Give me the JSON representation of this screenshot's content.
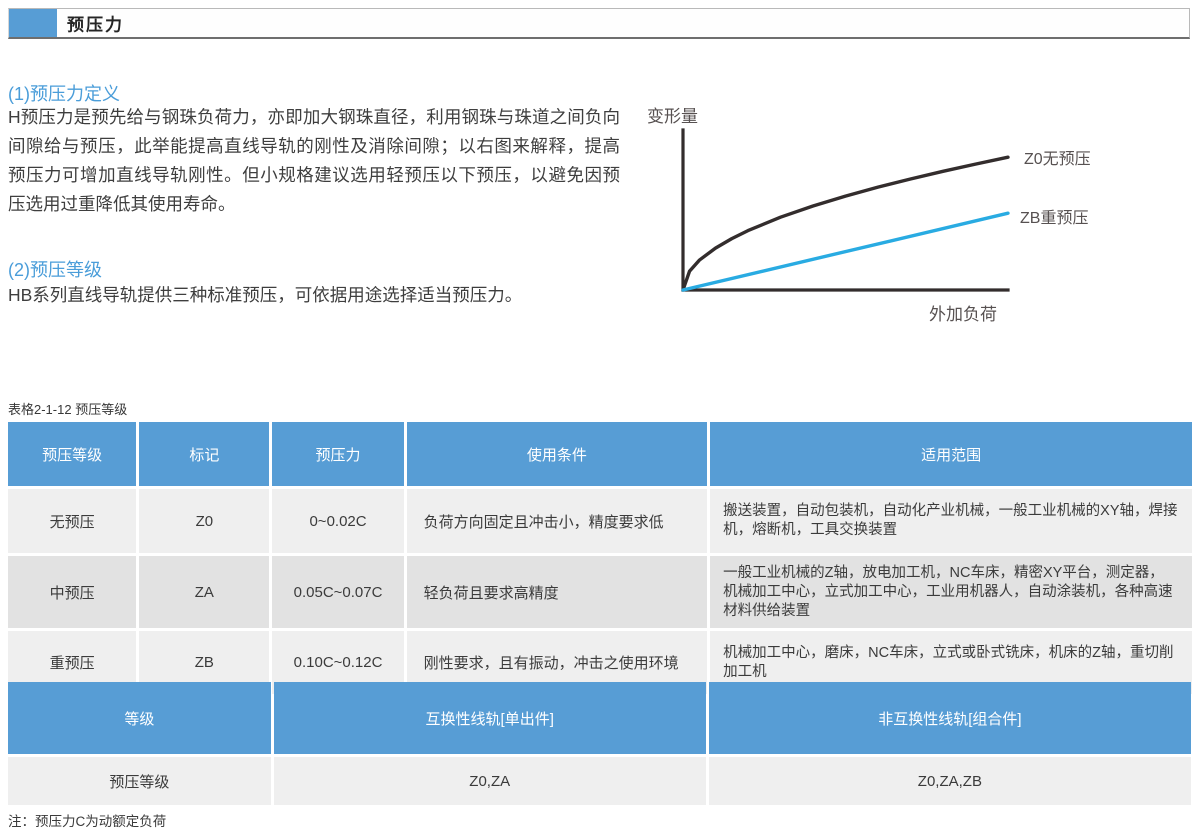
{
  "header": {
    "title": "预压力"
  },
  "sections": {
    "s1": {
      "heading": "(1)预压力定义",
      "body": "H预压力是预先给与钢珠负荷力，亦即加大钢珠直径，利用钢珠与珠道之间负向间隙给与预压，此举能提高直线导轨的刚性及消除间隙；以右图来解释，提高预压力可增加直线导轨刚性。但小规格建议选用轻预压以下预压，以避免因预压选用过重降低其使用寿命。"
    },
    "s2": {
      "heading": "(2)预压等级",
      "body": "HB系列直线导轨提供三种标准预压，可依据用途选择适当预压力。"
    }
  },
  "chart_data": {
    "type": "line",
    "title": "",
    "xlabel": "外加负荷",
    "ylabel": "变形量",
    "axes": {
      "numeric_ticks": false,
      "grid": false,
      "x_range_normalized": [
        0,
        1
      ],
      "y_range_normalized": [
        0,
        1
      ]
    },
    "legend_position": "right-of-lines",
    "series": [
      {
        "name": "Z0无预压",
        "color": "#332d2d",
        "style": "concave-curve",
        "x": [
          0,
          0.02,
          0.05,
          0.1,
          0.15,
          0.2,
          0.3,
          0.4,
          0.5,
          0.6,
          0.7,
          0.8,
          0.9,
          1.0
        ],
        "y": [
          0,
          0.117,
          0.186,
          0.262,
          0.321,
          0.371,
          0.455,
          0.525,
          0.587,
          0.643,
          0.694,
          0.742,
          0.787,
          0.83
        ]
      },
      {
        "name": "ZB重预压",
        "color": "#29abe2",
        "style": "straight-line",
        "x": [
          0,
          1.0
        ],
        "y": [
          0,
          0.48
        ]
      }
    ]
  },
  "table1": {
    "caption": "表格2-1-12  预压等级",
    "headers": [
      "预压等级",
      "标记",
      "预压力",
      "使用条件",
      "适用范围"
    ],
    "rows": [
      [
        "无预压",
        "Z0",
        "0~0.02C",
        "负荷方向固定且冲击小，精度要求低",
        "搬送装置，自动包装机，自动化产业机械，一般工业机械的XY轴，焊接机，熔断机，工具交换装置"
      ],
      [
        "中预压",
        "ZA",
        "0.05C~0.07C",
        "轻负荷且要求高精度",
        "一般工业机械的Z轴，放电加工机，NC车床，精密XY平台，测定器，机械加工中心，立式加工中心，工业用机器人，自动涂装机，各种高速材料供给装置"
      ],
      [
        "重预压",
        "ZB",
        "0.10C~0.12C",
        "刚性要求，且有振动，冲击之使用环境",
        "机械加工中心，磨床，NC车床，立式或卧式铣床，机床的Z轴，重切削加工机"
      ]
    ]
  },
  "table2": {
    "headers": [
      "等级",
      "互换性线轨[单出件]",
      "非互换性线轨[组合件]"
    ],
    "rows": [
      [
        "预压等级",
        "Z0,ZA",
        "Z0,ZA,ZB"
      ]
    ]
  },
  "note": "注：预压力C为动额定负荷",
  "colors": {
    "accent_blue": "#579dd5",
    "heading_blue": "#4a9dd9",
    "curve_black": "#332d2d",
    "curve_blue": "#29abe2"
  }
}
